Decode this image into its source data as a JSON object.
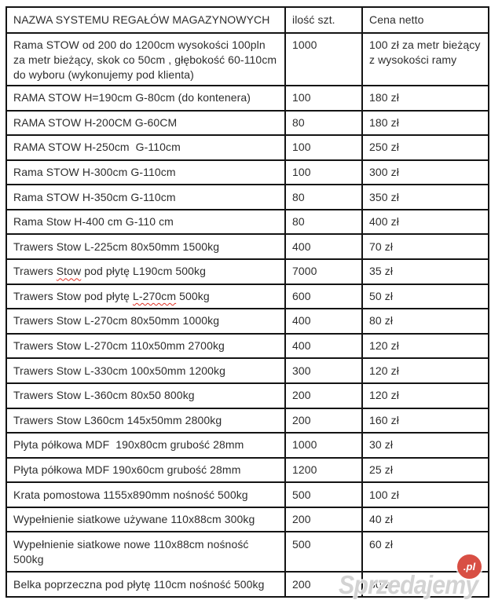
{
  "table": {
    "columns": [
      "NAZWA SYSTEMU REGAŁÓW MAGAZYNOWYCH",
      "ilość szt.",
      "Cena netto"
    ],
    "rows": [
      {
        "name": "Rama STOW od 200 do 1200cm wysokości 100pln za metr bieżący, skok co 50cm , głębokość 60-110cm do wyboru (wykonujemy pod klienta)",
        "qty": "1000",
        "price": "100 zł za metr bieżący z wysokości ramy"
      },
      {
        "name": "RAMA STOW H=190cm G-80cm (do kontenera)",
        "qty": "100",
        "price": "180 zł"
      },
      {
        "name": "RAMA STOW H-200CM G-60CM",
        "qty": "80",
        "price": "180 zł"
      },
      {
        "name": "RAMA STOW H-250cm  G-110cm",
        "qty": "100",
        "price": "250 zł"
      },
      {
        "name": "Rama STOW H-300cm G-110cm",
        "qty": "100",
        "price": "300 zł"
      },
      {
        "name": "Rama STOW H-350cm G-110cm",
        "qty": "80",
        "price": "350 zł"
      },
      {
        "name": "Rama Stow H-400 cm G-110 cm",
        "qty": "80",
        "price": "400 zł"
      },
      {
        "name": "Trawers Stow L-225cm 80x50mm 1500kg",
        "qty": "400",
        "price": "70 zł"
      },
      {
        "name": "Trawers Stow pod płytę L190cm 500kg",
        "qty": "7000",
        "price": "35 zł",
        "misspell": "Stow"
      },
      {
        "name": "Trawers Stow pod płytę L-270cm 500kg",
        "qty": "600",
        "price": "50 zł",
        "misspell": "L-270cm"
      },
      {
        "name": "Trawers Stow L-270cm 80x50mm 1000kg",
        "qty": "400",
        "price": "80 zł"
      },
      {
        "name": "Trawers Stow L-270cm 110x50mm 2700kg",
        "qty": "400",
        "price": "120 zł"
      },
      {
        "name": "Trawers Stow L-330cm 100x50mm 1200kg",
        "qty": "300",
        "price": "120 zł"
      },
      {
        "name": "Trawers Stow L-360cm 80x50 800kg",
        "qty": "200",
        "price": "120 zł"
      },
      {
        "name": "Trawers Stow L360cm 145x50mm 2800kg",
        "qty": "200",
        "price": "160 zł"
      },
      {
        "name": "Płyta półkowa MDF  190x80cm grubość 28mm",
        "qty": "1000",
        "price": "30 zł"
      },
      {
        "name": "Płyta półkowa MDF 190x60cm grubość 28mm",
        "qty": "1200",
        "price": "25 zł"
      },
      {
        "name": "Krata pomostowa 1155x890mm nośność 500kg",
        "qty": "500",
        "price": "100 zł"
      },
      {
        "name": "Wypełnienie siatkowe używane 110x88cm 300kg",
        "qty": "200",
        "price": "40 zł"
      },
      {
        "name": "Wypełnienie siatkowe nowe 110x88cm nośność 500kg",
        "qty": "500",
        "price": "60 zł"
      },
      {
        "name": "Belka poprzeczna pod płytę 110cm nośność 500kg",
        "qty": "200",
        "price": "30 zł"
      }
    ]
  },
  "watermark": {
    "text": "Sprzedajemy",
    "suffix": ".pl",
    "badge_color": "#d84f44"
  },
  "colors": {
    "border": "#141414",
    "text": "#2d2d2d",
    "squiggle": "#e03226"
  }
}
